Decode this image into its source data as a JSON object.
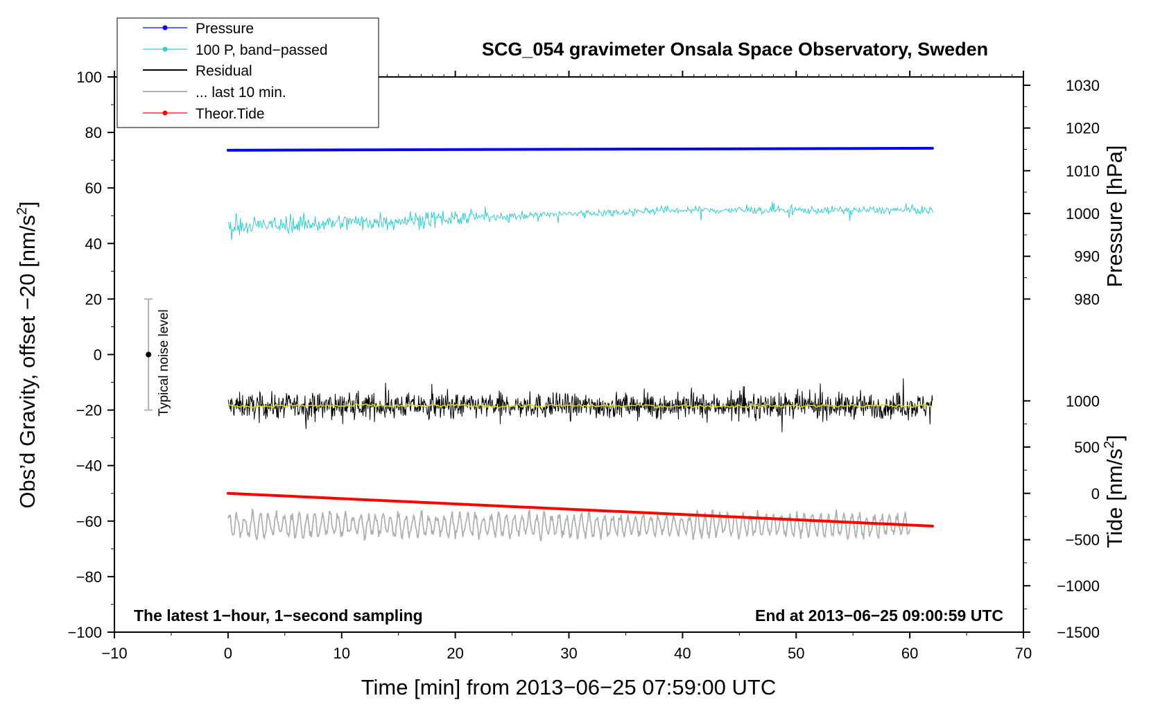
{
  "chart_data": {
    "type": "line",
    "title": "SCG_054 gravimeter Onsala Space Observatory, Sweden",
    "xlabel": "Time [min] from 2013−06−25 07:59:00 UTC",
    "ylabel_left": "Obs’d Gravity, offset −20 [nm/s",
    "ylabel_left_sup": "2",
    "ylabel_left_tail": "]",
    "ylabel_right_pressure": "Pressure [hPa]",
    "ylabel_right_tide": "Tide [nm/s",
    "ylabel_right_tide_sup": "2",
    "ylabel_right_tide_tail": "]",
    "xlim": [
      -10,
      70
    ],
    "ylim": [
      -100,
      100
    ],
    "x_ticks": [
      -10,
      0,
      10,
      20,
      30,
      40,
      50,
      60,
      70
    ],
    "x_tick_labels": [
      "−10",
      "0",
      "10",
      "20",
      "30",
      "40",
      "50",
      "60",
      "70"
    ],
    "y_ticks": [
      -100,
      -80,
      -60,
      -40,
      -20,
      0,
      20,
      40,
      60,
      80,
      100
    ],
    "y_tick_labels": [
      "−100",
      "−80",
      "−60",
      "−40",
      "−20",
      "0",
      "20",
      "40",
      "60",
      "80",
      "100"
    ],
    "pressure_axis": {
      "ticks": [
        980,
        990,
        1000,
        1010,
        1020,
        1030
      ],
      "tick_labels": [
        "980",
        "990",
        "1000",
        "1010",
        "1020",
        "1030"
      ],
      "gravity_equiv": [
        20,
        35.4,
        50.8,
        66.2,
        81.6,
        97.0
      ]
    },
    "tide_axis": {
      "ticks": [
        1000,
        500,
        0,
        -500,
        -1000,
        -1500
      ],
      "tick_labels": [
        "1000",
        "500",
        "0",
        "−500",
        "−1000",
        "−1500"
      ],
      "gravity_equiv": [
        -16.7,
        -33.3,
        -50,
        -66.7,
        -83.3,
        -100
      ]
    },
    "series": [
      {
        "name": "Pressure",
        "color": "#0000ff",
        "x_range": [
          0,
          62
        ],
        "start": 73.6,
        "end": 74.3,
        "noise": 0.15,
        "style": "thick"
      },
      {
        "name": "100 P, band−passed",
        "color": "#33cccc",
        "x_range": [
          0,
          62
        ],
        "start": 46,
        "end": 52,
        "noise": 2.2,
        "style": "thin"
      },
      {
        "name": "Residual",
        "color": "#000000",
        "x_range": [
          0,
          62
        ],
        "mean": -18.5,
        "noise": 3.2,
        "style": "noisy"
      },
      {
        "name": "Residual smoothed",
        "color": "#dddd00",
        "x_range": [
          0,
          62
        ],
        "mean": -18.5,
        "noise": 0.9,
        "style": "smooth"
      },
      {
        "name": "... last 10 min.",
        "color": "#b0b0b0",
        "x_range": [
          0,
          60
        ],
        "mean": -61.5,
        "noise": 4.5,
        "style": "oscillating"
      },
      {
        "name": "Theor.Tide",
        "color": "#ff0000",
        "x_range": [
          0,
          62
        ],
        "start": -50,
        "end": -61.8,
        "style": "thick"
      }
    ],
    "legend": {
      "position": "top-left",
      "entries": [
        {
          "label": "Pressure",
          "color": "#0000ff",
          "marker": true
        },
        {
          "label": "100 P, band−passed",
          "color": "#33cccc",
          "marker": true
        },
        {
          "label": "Residual",
          "color": "#000000",
          "marker": false
        },
        {
          "label": "... last 10 min.",
          "color": "#b0b0b0",
          "marker": false
        },
        {
          "label": "Theor.Tide",
          "color": "#ff0000",
          "marker": true
        }
      ]
    },
    "noise_bar": {
      "label": "Typical noise level",
      "x": -7,
      "center": 0,
      "low": -20,
      "high": 20
    },
    "annotations": {
      "bottom_left": "The latest 1−hour, 1−second sampling",
      "bottom_right": "End at 2013−06−25 09:00:59 UTC"
    }
  }
}
